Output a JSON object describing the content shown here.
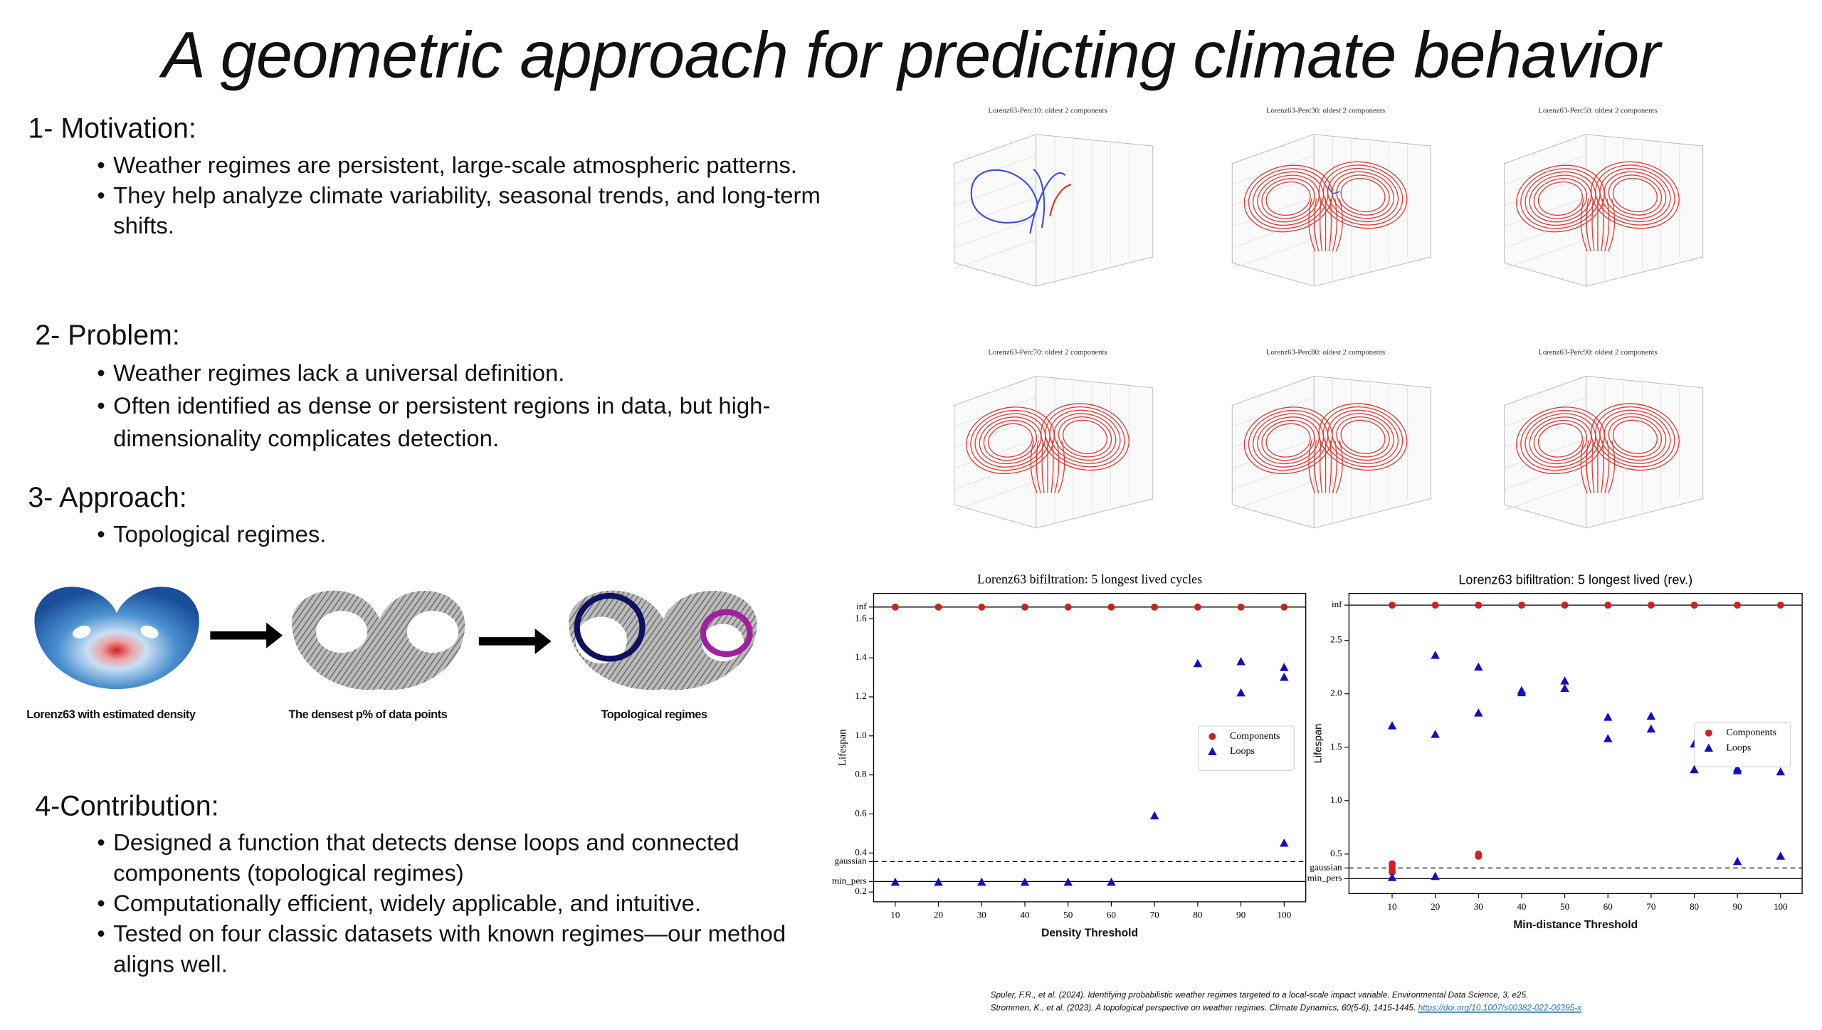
{
  "title": "A geometric approach for predicting climate behavior",
  "sections": [
    {
      "heading": "1- Motivation:",
      "bullets": [
        "Weather regimes are persistent, large-scale atmospheric patterns.",
        "They help analyze climate variability, seasonal trends, and long-term shifts."
      ]
    },
    {
      "heading": "2- Problem:",
      "bullets": [
        "Weather regimes lack a universal definition.",
        "Often identified as dense or persistent regions in data, but high-dimensionality complicates detection."
      ]
    },
    {
      "heading": "3- Approach:",
      "bullets": [
        "Topological  regimes."
      ]
    },
    {
      "heading": "4-Contribution:",
      "bullets": [
        "Designed a function that detects dense loops and connected components (topological regimes)",
        "Computationally efficient, widely applicable, and intuitive.",
        "Tested on four classic datasets with known regimes—our method aligns well."
      ]
    }
  ],
  "pipeline": {
    "captions": [
      "Lorenz63 with estimated density",
      "The densest p% of data points",
      "Topological regimes"
    ]
  },
  "thumbnails": [
    {
      "title": "Lorenz63-Perc10: oldest 2 components"
    },
    {
      "title": "Lorenz63-Perc30: oldest 2 components"
    },
    {
      "title": "Lorenz63-Perc50: oldest 2 components"
    },
    {
      "title": "Lorenz63-Perc70: oldest 2 components"
    },
    {
      "title": "Lorenz63-Perc80: oldest 2 components"
    },
    {
      "title": "Lorenz63-Perc90: oldest 2 components"
    }
  ],
  "chart_data": [
    {
      "type": "scatter",
      "title": "Lorenz63 bifiltration: 5 longest lived cycles",
      "x_label": "Density Threshold",
      "y_label": "Lifespan",
      "xlim": [
        5,
        105
      ],
      "xticks": [
        10,
        20,
        30,
        40,
        50,
        60,
        70,
        80,
        90,
        100
      ],
      "ylim": [
        0.15,
        1.73
      ],
      "yticks": [
        {
          "value": 0.254,
          "label": "min_pers",
          "line": "solid"
        },
        0.2,
        {
          "value": 0.356,
          "label": "gaussian",
          "line": "dashed"
        },
        0.4,
        0.6,
        0.8,
        {
          "value": 1.0,
          "label": "1.0"
        },
        1.2,
        1.4,
        1.6,
        {
          "value": 1.66,
          "label": "inf",
          "line": "solid"
        }
      ],
      "legend": "center right",
      "series": [
        {
          "name": "Components",
          "color": "#c0281e",
          "marker": "circle",
          "x": [
            10,
            20,
            30,
            40,
            50,
            60,
            70,
            80,
            90,
            100
          ],
          "values": [
            1.66,
            1.66,
            1.66,
            1.66,
            1.66,
            1.66,
            1.66,
            1.66,
            1.66,
            1.66
          ]
        },
        {
          "name": "Loops",
          "color": "#1010b8",
          "marker": "triangle",
          "x": [
            10,
            20,
            30,
            40,
            50,
            60,
            70,
            80,
            90,
            90,
            100,
            100,
            100
          ],
          "values": [
            0.25,
            0.25,
            0.25,
            0.25,
            0.25,
            0.25,
            0.59,
            1.37,
            1.38,
            1.22,
            1.35,
            1.3,
            0.45
          ]
        }
      ]
    },
    {
      "type": "scatter",
      "title": "Lorenz63 bifiltration: 5 longest lived (rev.)",
      "x_label": "Min-distance Threshold",
      "y_label": "Lifespan",
      "xlim": [
        0,
        105
      ],
      "xticks": [
        10,
        20,
        30,
        40,
        50,
        60,
        70,
        80,
        90,
        100
      ],
      "ylim": [
        0.13,
        2.94
      ],
      "yticks": [
        {
          "value": 0.27,
          "label": "min_pers",
          "line": "solid"
        },
        {
          "value": 0.37,
          "label": "gaussian",
          "line": "dashed"
        },
        0.5,
        {
          "value": 1.0,
          "label": "1.0"
        },
        1.5,
        {
          "value": 2.0,
          "label": "2.0"
        },
        2.5,
        {
          "value": 2.83,
          "label": "inf",
          "line": "solid"
        }
      ],
      "legend": "center right",
      "series": [
        {
          "name": "Components",
          "color": "#d42020",
          "marker": "circle",
          "x": [
            10,
            20,
            30,
            40,
            50,
            60,
            70,
            80,
            90,
            100,
            10,
            10,
            10,
            10,
            30,
            30
          ],
          "values": [
            2.83,
            2.83,
            2.83,
            2.83,
            2.83,
            2.83,
            2.83,
            2.83,
            2.83,
            2.83,
            0.41,
            0.38,
            0.35,
            0.33,
            0.5,
            0.48
          ]
        },
        {
          "name": "Loops",
          "color": "#1010c0",
          "marker": "triangle",
          "x": [
            10,
            10,
            20,
            20,
            20,
            30,
            30,
            40,
            40,
            50,
            50,
            60,
            60,
            70,
            70,
            80,
            80,
            90,
            90,
            90,
            100,
            100
          ],
          "values": [
            1.7,
            0.28,
            2.36,
            1.62,
            0.29,
            2.25,
            1.82,
            2.03,
            2.01,
            2.12,
            2.05,
            1.78,
            1.58,
            1.79,
            1.67,
            1.53,
            1.29,
            1.3,
            1.28,
            0.43,
            1.27,
            0.48
          ]
        }
      ]
    }
  ],
  "references": [
    {
      "text": "Spuler, F.R., et al. (2024). Identifying probabilistic weather regimes targeted to a local-scale impact variable. Environmental Data Science, 3, e25."
    },
    {
      "text": "Strommen, K., et al. (2023). A topological perspective on weather regimes. Climate Dynamics, 60(5-6), 1415-1445. ",
      "link": "https://doi.org/10.1007/s00382-022-06395-x"
    }
  ]
}
